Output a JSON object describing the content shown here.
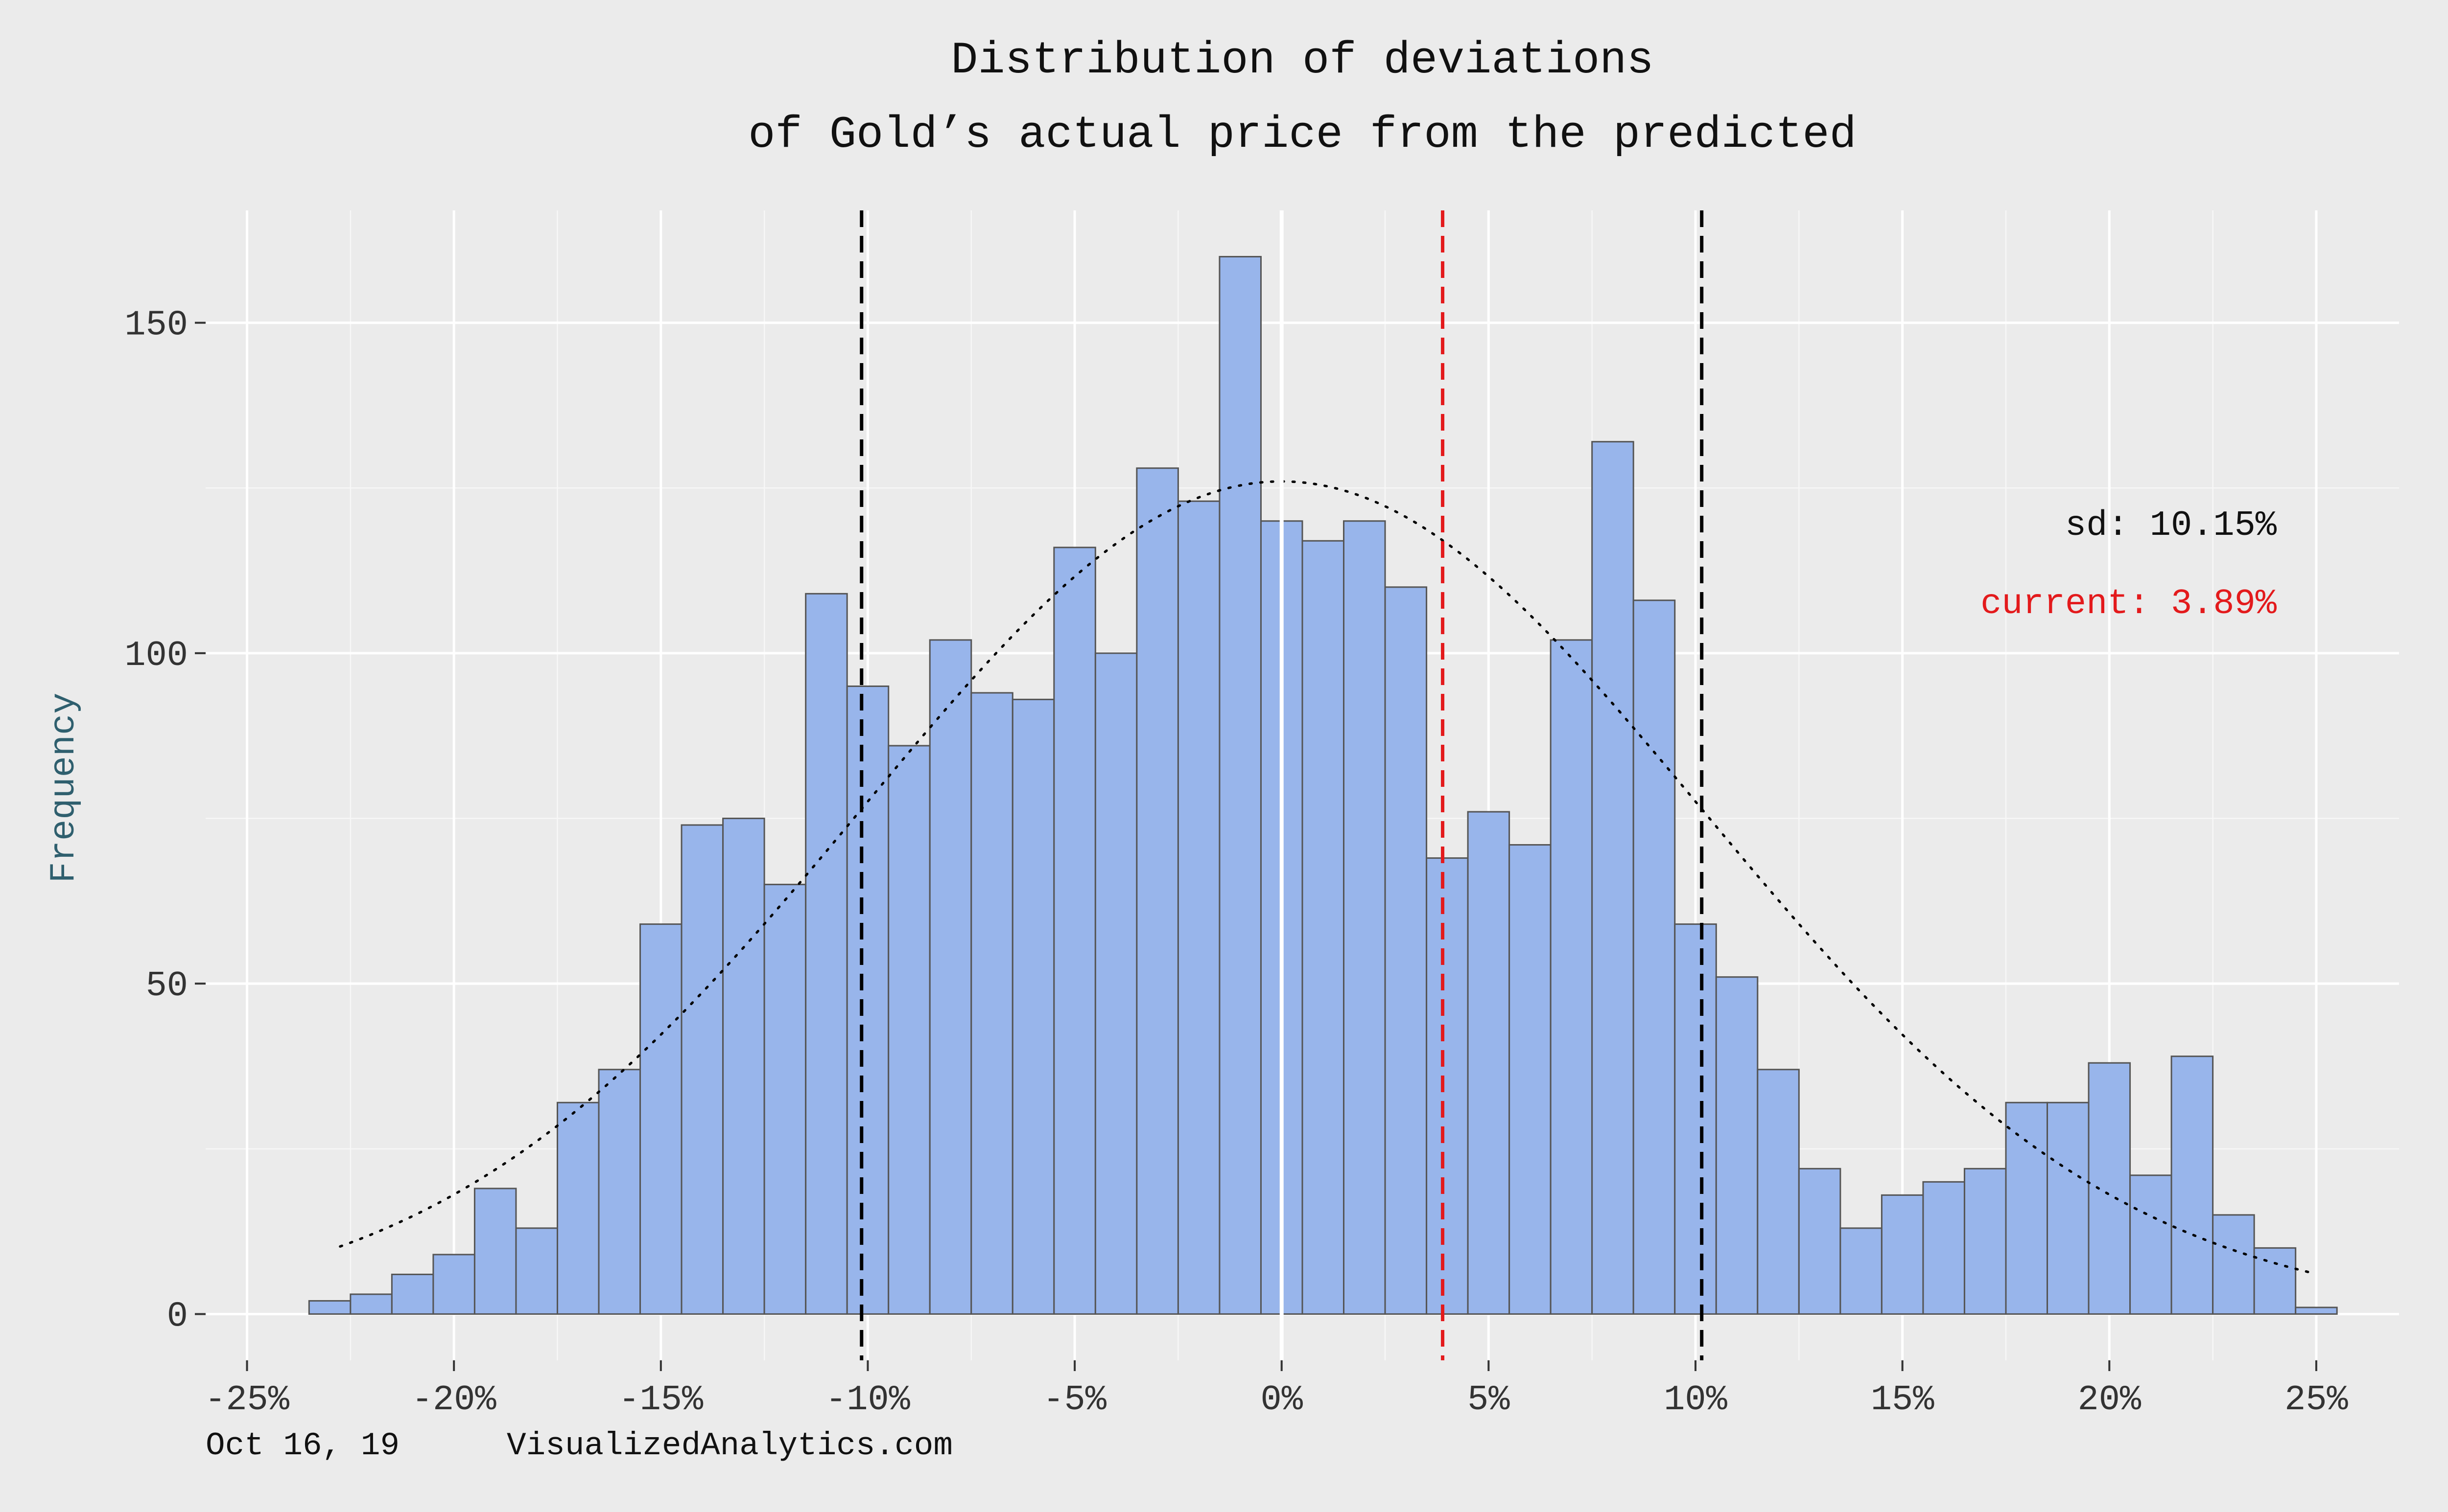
{
  "title_line1": "Distribution of deviations",
  "title_line2": "of Gold’s actual price from the predicted",
  "footer_date": "Oct 16, 19",
  "footer_site": "VisualizedAnalytics.com",
  "sd_label": "sd: 10.15%",
  "current_label": "current: 3.89%",
  "colors": {
    "bar_fill": "#98b5eb",
    "bar_stroke": "#555555",
    "current_line": "#e31a1c",
    "sd_line": "#000000",
    "ylabel": "#2f5f6e"
  },
  "chart_data": {
    "type": "bar",
    "subtype": "histogram",
    "title": "Distribution of deviations\nof Gold’s actual price from the predicted",
    "xlabel": "",
    "ylabel": "Frequency",
    "xlim": [
      -26,
      27
    ],
    "ylim": [
      -7,
      167
    ],
    "bin_width": 1,
    "bin_start": -23.5,
    "x_ticks": [
      -25,
      -20,
      -15,
      -10,
      -5,
      0,
      5,
      10,
      15,
      20,
      25
    ],
    "x_tick_labels": [
      "-25%",
      "-20%",
      "-15%",
      "-10%",
      "-5%",
      "0%",
      "5%",
      "10%",
      "15%",
      "20%",
      "25%"
    ],
    "y_ticks": [
      0,
      50,
      100,
      150
    ],
    "y_tick_labels": [
      "0",
      "50",
      "100",
      "150"
    ],
    "values": [
      2,
      3,
      6,
      9,
      19,
      13,
      32,
      37,
      59,
      74,
      75,
      65,
      109,
      95,
      86,
      102,
      94,
      93,
      116,
      100,
      128,
      123,
      160,
      120,
      117,
      120,
      110,
      69,
      76,
      71,
      102,
      132,
      108,
      59,
      51,
      37,
      22,
      13,
      18,
      20,
      22,
      32,
      32,
      38,
      21,
      39,
      15,
      10,
      1
    ],
    "reference_lines": {
      "mean": 0,
      "current": 3.89,
      "sd_lower": -10.15,
      "sd_upper": 10.15
    },
    "normal_curve": {
      "mean": 0,
      "sd": 10.15,
      "peak": 126,
      "x_range": [
        -22.75,
        25
      ]
    },
    "grid": true,
    "legend": "none"
  }
}
